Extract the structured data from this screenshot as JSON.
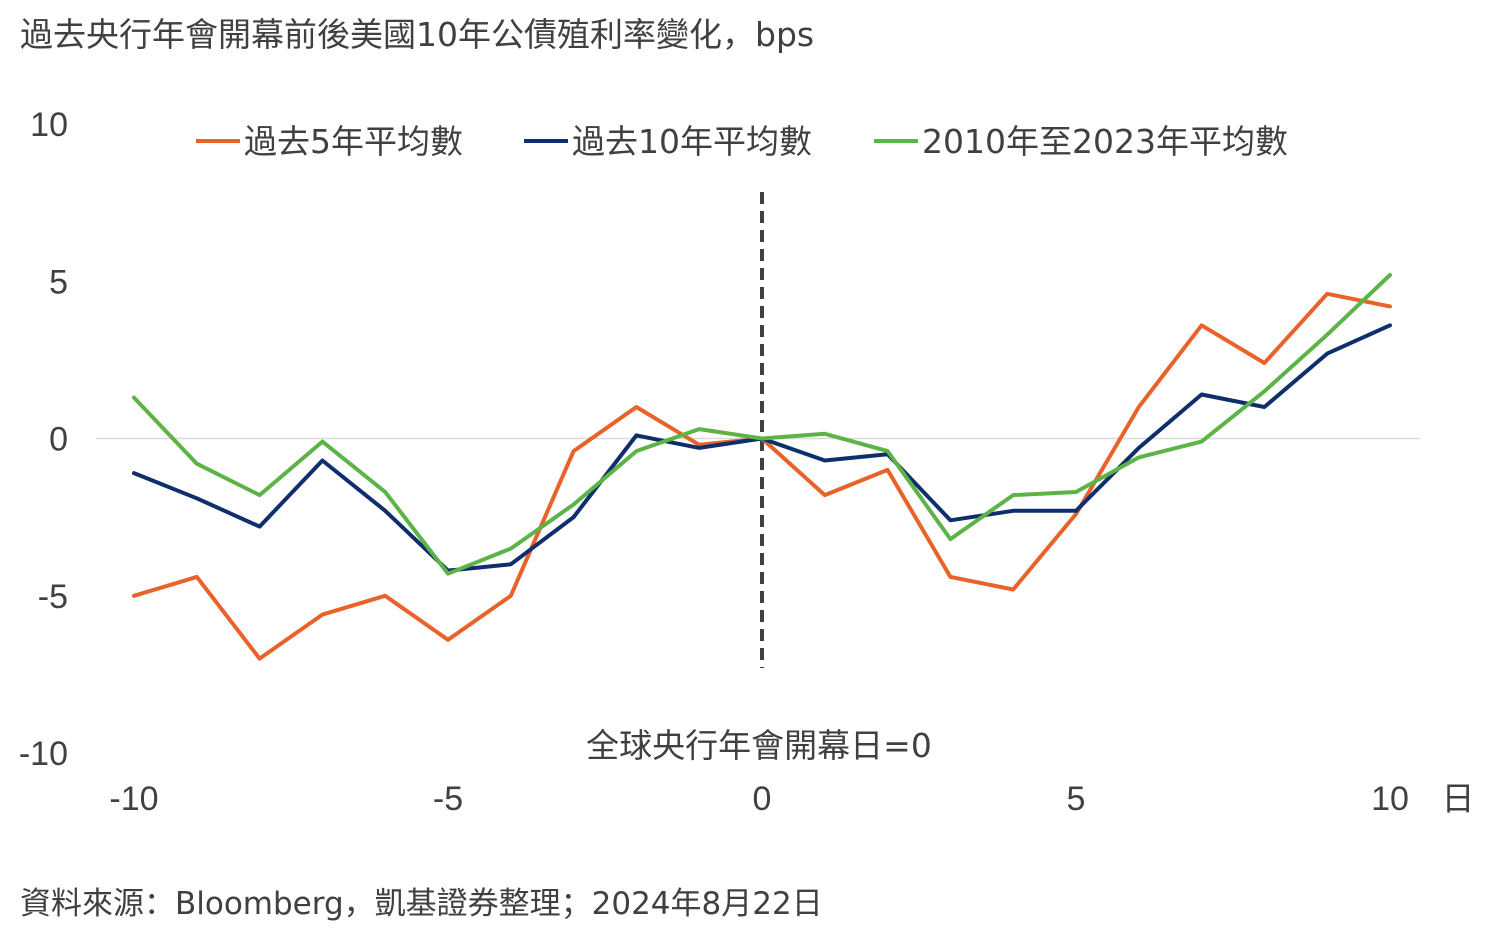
{
  "title": "過去央行年會開幕前後美國10年公債殖利率變化，bps",
  "source": "資料來源：Bloomberg，凱基證券整理；2024年8月22日",
  "chart_data": {
    "type": "line",
    "x": [
      -10,
      -9,
      -8,
      -7,
      -6,
      -5,
      -4,
      -3,
      -2,
      -1,
      0,
      1,
      2,
      3,
      4,
      5,
      6,
      7,
      8,
      9,
      10
    ],
    "xlim": [
      -10,
      10
    ],
    "ylim": [
      -10,
      10
    ],
    "xticks": [
      -10,
      -5,
      0,
      5,
      10
    ],
    "yticks": [
      10,
      5,
      0,
      -5,
      -10
    ],
    "x_unit_label": "日",
    "grid": false,
    "zero_line": true,
    "vertical_marker": {
      "x": 0,
      "style": "dashed",
      "label": "全球央行年會開幕日=0"
    },
    "legend_position": "top",
    "series": [
      {
        "name": "過去5年平均數",
        "color": "#E8622A",
        "values": [
          -5.0,
          -4.4,
          -7.0,
          -5.6,
          -5.0,
          -6.4,
          -5.0,
          -0.4,
          1.0,
          -0.2,
          0,
          -1.8,
          -1.0,
          -4.4,
          -4.8,
          -2.4,
          1.0,
          3.6,
          2.4,
          4.6,
          4.2
        ]
      },
      {
        "name": "過去10年平均數",
        "color": "#0E2F6B",
        "values": [
          -1.1,
          -1.9,
          -2.8,
          -0.7,
          -2.3,
          -4.2,
          -4.0,
          -2.5,
          0.1,
          -0.3,
          0,
          -0.7,
          -0.5,
          -2.6,
          -2.3,
          -2.3,
          -0.3,
          1.4,
          1.0,
          2.7,
          3.6
        ]
      },
      {
        "name": "2010年至2023年平均數",
        "color": "#5CB346",
        "values": [
          1.3,
          -0.8,
          -1.8,
          -0.1,
          -1.7,
          -4.3,
          -3.5,
          -2.1,
          -0.4,
          0.3,
          0,
          0.15,
          -0.4,
          -3.2,
          -1.8,
          -1.7,
          -0.6,
          -0.1,
          1.5,
          3.3,
          5.2
        ]
      }
    ]
  }
}
